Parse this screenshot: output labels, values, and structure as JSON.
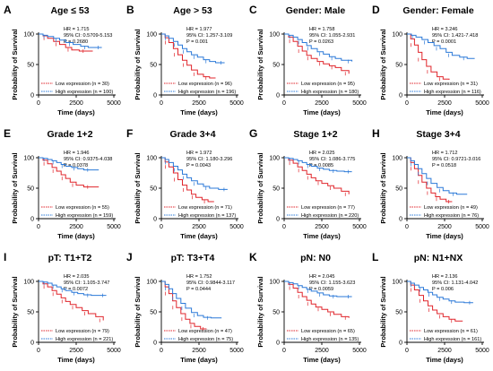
{
  "figure": {
    "axis": {
      "ylabel": "Probability of Survival",
      "xlabel": "Time (days)"
    },
    "colors": {
      "low": "#e0252b",
      "high": "#2b79d8",
      "axis": "#000000"
    }
  },
  "chart_data": [
    {
      "letter": "A",
      "title": "Age ≤ 53",
      "type": "line",
      "xlim": [
        0,
        5000
      ],
      "ylim": [
        0,
        100
      ],
      "xticks": [
        "0",
        "2500",
        "5000"
      ],
      "yticks": [
        "0",
        "50",
        "100"
      ],
      "stats": [
        "HR = 1.715",
        "95% CI: 0.5709-5.153",
        "P = 0.2680"
      ],
      "legend": [
        "Low expression (n = 30)",
        "High expression (n = 100)"
      ],
      "series": [
        {
          "x": [
            0,
            300,
            600,
            1000,
            1400,
            1800,
            2200,
            2700,
            3200,
            3600
          ],
          "y": [
            100,
            97,
            93,
            88,
            83,
            78,
            74,
            72,
            72,
            72
          ]
        },
        {
          "x": [
            0,
            300,
            600,
            1000,
            1400,
            1800,
            2300,
            2800,
            3300,
            3800,
            4200
          ],
          "y": [
            100,
            98,
            96,
            93,
            90,
            86,
            83,
            80,
            78,
            78,
            78
          ]
        }
      ]
    },
    {
      "letter": "B",
      "title": "Age > 53",
      "type": "line",
      "xlim": [
        0,
        5000
      ],
      "ylim": [
        0,
        100
      ],
      "xticks": [
        "0",
        "2500",
        "5000"
      ],
      "yticks": [
        "0",
        "50",
        "100"
      ],
      "stats": [
        "HR = 1.977",
        "95% CI: 1.257-3.109",
        "P = 0.001"
      ],
      "legend": [
        "Low expression (n = 96)",
        "High expression (n = 196)"
      ],
      "series": [
        {
          "x": [
            0,
            250,
            500,
            800,
            1100,
            1400,
            1700,
            2000,
            2400,
            2800,
            3200,
            3600
          ],
          "y": [
            100,
            94,
            86,
            76,
            66,
            57,
            49,
            41,
            34,
            30,
            28,
            28
          ]
        },
        {
          "x": [
            0,
            250,
            500,
            800,
            1100,
            1400,
            1700,
            2000,
            2400,
            2800,
            3200,
            3600,
            4200
          ],
          "y": [
            100,
            97,
            93,
            88,
            82,
            76,
            71,
            66,
            62,
            58,
            55,
            53,
            53
          ]
        }
      ]
    },
    {
      "letter": "C",
      "title": "Gender: Male",
      "type": "line",
      "xlim": [
        0,
        5000
      ],
      "ylim": [
        0,
        100
      ],
      "xticks": [
        "0",
        "2500",
        "5000"
      ],
      "yticks": [
        "0",
        "50",
        "100"
      ],
      "stats": [
        "HR = 1.758",
        "95% CI: 1.055-2.931",
        "P = 0.0263"
      ],
      "legend": [
        "Low expression (n = 95)",
        "High expression (n = 180)"
      ],
      "series": [
        {
          "x": [
            0,
            300,
            600,
            900,
            1200,
            1500,
            1800,
            2200,
            2600,
            3000,
            3400,
            3800,
            4300
          ],
          "y": [
            100,
            95,
            88,
            80,
            72,
            65,
            60,
            55,
            51,
            48,
            45,
            40,
            35
          ]
        },
        {
          "x": [
            0,
            300,
            600,
            900,
            1200,
            1500,
            1800,
            2200,
            2600,
            3000,
            3400,
            3800,
            4500
          ],
          "y": [
            100,
            98,
            95,
            91,
            86,
            81,
            76,
            71,
            67,
            63,
            60,
            57,
            55
          ]
        }
      ]
    },
    {
      "letter": "D",
      "title": "Gender: Female",
      "type": "line",
      "xlim": [
        0,
        5000
      ],
      "ylim": [
        0,
        100
      ],
      "xticks": [
        "0",
        "2500",
        "5000"
      ],
      "yticks": [
        "0",
        "50",
        "100"
      ],
      "stats": [
        "HR = 3.246",
        "95% CI: 1.421-7.418",
        "P = 0.0001"
      ],
      "legend": [
        "Low expression (n = 31)",
        "High expression (n = 116)"
      ],
      "series": [
        {
          "x": [
            0,
            250,
            500,
            750,
            1000,
            1300,
            1600,
            2000,
            2400,
            2800
          ],
          "y": [
            100,
            92,
            82,
            70,
            58,
            47,
            38,
            30,
            26,
            25
          ]
        },
        {
          "x": [
            0,
            300,
            600,
            1000,
            1400,
            1800,
            2200,
            2600,
            3000,
            3500,
            4000,
            4500
          ],
          "y": [
            100,
            98,
            95,
            91,
            86,
            81,
            76,
            70,
            65,
            62,
            60,
            60
          ]
        }
      ]
    },
    {
      "letter": "E",
      "title": "Grade 1+2",
      "type": "line",
      "xlim": [
        0,
        5000
      ],
      "ylim": [
        0,
        100
      ],
      "xticks": [
        "0",
        "2500",
        "5000"
      ],
      "yticks": [
        "0",
        "50",
        "100"
      ],
      "stats": [
        "HR = 1.946",
        "95% CI: 0.9375-4.038",
        "P = 0.0378"
      ],
      "legend": [
        "Low expression (n = 55)",
        "High expression (n = 159)"
      ],
      "series": [
        {
          "x": [
            0,
            300,
            600,
            900,
            1200,
            1500,
            1800,
            2100,
            2500,
            3000,
            3500,
            4000
          ],
          "y": [
            100,
            96,
            90,
            84,
            78,
            72,
            66,
            60,
            55,
            52,
            52,
            52
          ]
        },
        {
          "x": [
            0,
            300,
            600,
            900,
            1200,
            1500,
            1800,
            2200,
            2600,
            3000,
            3500,
            4000
          ],
          "y": [
            100,
            99,
            97,
            95,
            92,
            89,
            86,
            84,
            82,
            80,
            80,
            80
          ]
        }
      ]
    },
    {
      "letter": "F",
      "title": "Grade 3+4",
      "type": "line",
      "xlim": [
        0,
        5000
      ],
      "ylim": [
        0,
        100
      ],
      "xticks": [
        "0",
        "2500",
        "5000"
      ],
      "yticks": [
        "0",
        "50",
        "100"
      ],
      "stats": [
        "HR = 1.972",
        "95% CI: 1.180-3.296",
        "P = 0.0043"
      ],
      "legend": [
        "Low expression (n = 71)",
        "High expression (n = 137)"
      ],
      "series": [
        {
          "x": [
            0,
            250,
            500,
            800,
            1100,
            1400,
            1700,
            2000,
            2300,
            2700,
            3100,
            3500
          ],
          "y": [
            100,
            93,
            85,
            75,
            64,
            55,
            47,
            40,
            35,
            31,
            28,
            28
          ]
        },
        {
          "x": [
            0,
            250,
            500,
            800,
            1100,
            1400,
            1700,
            2000,
            2400,
            2800,
            3200,
            3800,
            4400
          ],
          "y": [
            100,
            97,
            92,
            86,
            80,
            73,
            67,
            62,
            57,
            53,
            50,
            48,
            48
          ]
        }
      ]
    },
    {
      "letter": "G",
      "title": "Stage 1+2",
      "type": "line",
      "xlim": [
        0,
        5000
      ],
      "ylim": [
        0,
        100
      ],
      "xticks": [
        "0",
        "2500",
        "5000"
      ],
      "yticks": [
        "0",
        "50",
        "100"
      ],
      "stats": [
        "HR = 2.025",
        "95% CI: 1.086-3.775",
        "P = 0.0085"
      ],
      "legend": [
        "Low expression (n = 77)",
        "High expression (n = 220)"
      ],
      "series": [
        {
          "x": [
            0,
            300,
            600,
            900,
            1200,
            1500,
            1800,
            2100,
            2500,
            2900,
            3300,
            3800,
            4300
          ],
          "y": [
            100,
            96,
            91,
            85,
            79,
            73,
            67,
            62,
            58,
            54,
            50,
            45,
            40
          ]
        },
        {
          "x": [
            0,
            300,
            600,
            900,
            1200,
            1500,
            1800,
            2200,
            2600,
            3000,
            3500,
            4000,
            4500
          ],
          "y": [
            100,
            99,
            97,
            95,
            92,
            89,
            86,
            83,
            81,
            79,
            78,
            77,
            77
          ]
        }
      ]
    },
    {
      "letter": "H",
      "title": "Stage 3+4",
      "type": "line",
      "xlim": [
        0,
        5000
      ],
      "ylim": [
        0,
        100
      ],
      "xticks": [
        "0",
        "2500",
        "5000"
      ],
      "yticks": [
        "0",
        "50",
        "100"
      ],
      "stats": [
        "HR = 1.712",
        "95% CI: 0.9721-3.016",
        "P = 0.0518"
      ],
      "legend": [
        "Low expression (n = 49)",
        "High expression (n = 76)"
      ],
      "series": [
        {
          "x": [
            0,
            250,
            500,
            750,
            1000,
            1300,
            1600,
            1900,
            2200,
            2600,
            3000
          ],
          "y": [
            100,
            92,
            82,
            71,
            60,
            50,
            42,
            36,
            32,
            28,
            28
          ]
        },
        {
          "x": [
            0,
            250,
            500,
            750,
            1000,
            1300,
            1600,
            2000,
            2400,
            2800,
            3300,
            4000
          ],
          "y": [
            100,
            95,
            89,
            82,
            74,
            66,
            58,
            51,
            46,
            42,
            40,
            40
          ]
        }
      ]
    },
    {
      "letter": "I",
      "title": "pT: T1+T2",
      "type": "line",
      "xlim": [
        0,
        5000
      ],
      "ylim": [
        0,
        100
      ],
      "xticks": [
        "0",
        "2500",
        "5000"
      ],
      "yticks": [
        "0",
        "50",
        "100"
      ],
      "stats": [
        "HR = 2.035",
        "95% CI: 1.105-3.747",
        "P = 0.0072"
      ],
      "legend": [
        "Low expression (n = 79)",
        "High expression (n = 221)"
      ],
      "series": [
        {
          "x": [
            0,
            300,
            600,
            900,
            1200,
            1500,
            1800,
            2100,
            2500,
            2900,
            3300,
            3800,
            4300
          ],
          "y": [
            100,
            96,
            91,
            85,
            79,
            73,
            67,
            62,
            57,
            52,
            47,
            42,
            36
          ]
        },
        {
          "x": [
            0,
            300,
            600,
            900,
            1200,
            1500,
            1800,
            2200,
            2600,
            3000,
            3500,
            4000,
            4500
          ],
          "y": [
            100,
            99,
            97,
            94,
            91,
            88,
            85,
            82,
            80,
            78,
            77,
            77,
            77
          ]
        }
      ]
    },
    {
      "letter": "J",
      "title": "pT: T3+T4",
      "type": "line",
      "xlim": [
        0,
        5000
      ],
      "ylim": [
        0,
        100
      ],
      "xticks": [
        "0",
        "2500",
        "5000"
      ],
      "yticks": [
        "0",
        "50",
        "100"
      ],
      "stats": [
        "HR = 1.752",
        "95% CI: 0.9844-3.117",
        "P = 0.0444"
      ],
      "legend": [
        "Low expression (n = 47)",
        "High expression (n = 75)"
      ],
      "series": [
        {
          "x": [
            0,
            250,
            500,
            750,
            1000,
            1300,
            1600,
            1900,
            2200,
            2600,
            3000
          ],
          "y": [
            100,
            91,
            80,
            68,
            57,
            47,
            38,
            31,
            26,
            22,
            22
          ]
        },
        {
          "x": [
            0,
            250,
            500,
            750,
            1000,
            1300,
            1600,
            2000,
            2400,
            2800,
            3300,
            4000
          ],
          "y": [
            100,
            95,
            88,
            80,
            72,
            64,
            56,
            49,
            44,
            41,
            40,
            40
          ]
        }
      ]
    },
    {
      "letter": "K",
      "title": "pN: N0",
      "type": "line",
      "xlim": [
        0,
        5000
      ],
      "ylim": [
        0,
        100
      ],
      "xticks": [
        "0",
        "2500",
        "5000"
      ],
      "yticks": [
        "0",
        "50",
        "100"
      ],
      "stats": [
        "HR = 2.045",
        "95% CI: 1.155-3.623",
        "P = 0.0059"
      ],
      "legend": [
        "Low expression (n = 65)",
        "High expression (n = 135)"
      ],
      "series": [
        {
          "x": [
            0,
            300,
            600,
            900,
            1200,
            1500,
            1800,
            2100,
            2500,
            2900,
            3300,
            3800,
            4300
          ],
          "y": [
            100,
            95,
            89,
            82,
            75,
            69,
            63,
            58,
            54,
            50,
            46,
            42,
            40
          ]
        },
        {
          "x": [
            0,
            300,
            600,
            900,
            1200,
            1500,
            1800,
            2200,
            2600,
            3000,
            3500,
            4000,
            4500
          ],
          "y": [
            100,
            98,
            96,
            93,
            90,
            87,
            84,
            81,
            78,
            76,
            75,
            75,
            75
          ]
        }
      ]
    },
    {
      "letter": "L",
      "title": "pN: N1+NX",
      "type": "line",
      "xlim": [
        0,
        5000
      ],
      "ylim": [
        0,
        100
      ],
      "xticks": [
        "0",
        "2500",
        "5000"
      ],
      "yticks": [
        "0",
        "50",
        "100"
      ],
      "stats": [
        "HR = 2.136",
        "95% CI: 1.131-4.042",
        "P = 0.006"
      ],
      "legend": [
        "Low expression (n = 61)",
        "High expression (n = 161)"
      ],
      "series": [
        {
          "x": [
            0,
            250,
            500,
            800,
            1100,
            1400,
            1700,
            2000,
            2400,
            2800,
            3200,
            3700
          ],
          "y": [
            100,
            94,
            86,
            77,
            68,
            60,
            53,
            47,
            42,
            38,
            35,
            35
          ]
        },
        {
          "x": [
            0,
            250,
            500,
            800,
            1100,
            1400,
            1700,
            2000,
            2400,
            2800,
            3200,
            3800,
            4400
          ],
          "y": [
            100,
            97,
            94,
            90,
            86,
            82,
            78,
            74,
            71,
            68,
            66,
            65,
            65
          ]
        }
      ]
    }
  ]
}
